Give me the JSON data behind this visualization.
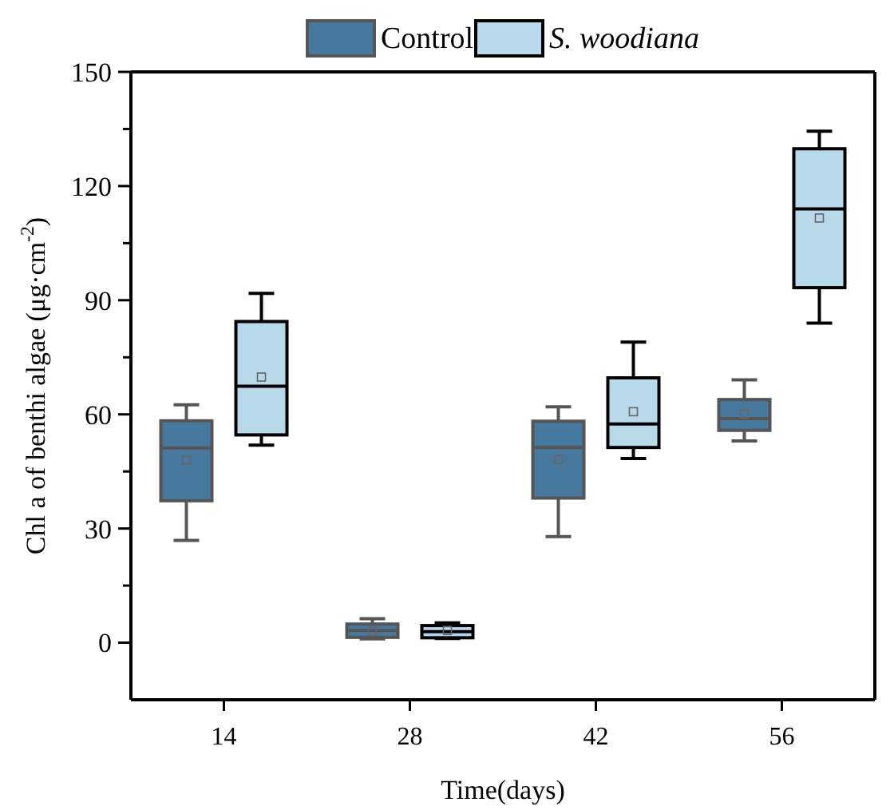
{
  "chart_data": {
    "type": "box",
    "xlabel": "Time(days)",
    "ylabel": "Chl a of benthi algae (μg·cm$^{-2}$)",
    "categories": [
      "14",
      "28",
      "42",
      "56"
    ],
    "ylim": [
      -15,
      150
    ],
    "yticks": [
      {
        "value": 0,
        "label": "0"
      },
      {
        "value": 15,
        "label": null
      },
      {
        "value": 30,
        "label": "30"
      },
      {
        "value": 45,
        "label": null
      },
      {
        "value": 60,
        "label": "60"
      },
      {
        "value": 75,
        "label": null
      },
      {
        "value": 90,
        "label": "90"
      },
      {
        "value": 105,
        "label": null
      },
      {
        "value": 120,
        "label": "120"
      },
      {
        "value": 135,
        "label": null
      },
      {
        "value": 150,
        "label": "150"
      }
    ],
    "legend": "top",
    "grid": false,
    "series": [
      {
        "name": "Control",
        "color": "#47799e",
        "boxes": [
          {
            "low": 26.9,
            "q1": 37.3,
            "median": 51.2,
            "q3": 58.3,
            "high": 62.5,
            "mean": 48
          },
          {
            "low": 1,
            "q1": 1.4,
            "median": 3.2,
            "q3": 4.9,
            "high": 6.3,
            "mean": 3
          },
          {
            "low": 27.9,
            "q1": 38,
            "median": 51.3,
            "q3": 58.2,
            "high": 62,
            "mean": 48.1
          },
          {
            "low": 53,
            "q1": 55.8,
            "median": 58.9,
            "q3": 63.9,
            "high": 69.1,
            "mean": 60.1
          }
        ]
      },
      {
        "name": "S. woodiana",
        "color": "#b8d9ea",
        "boxes": [
          {
            "low": 51.9,
            "q1": 54.6,
            "median": 67.4,
            "q3": 84.4,
            "high": 91.8,
            "mean": 69.8
          },
          {
            "low": 1.1,
            "q1": 1.3,
            "median": 2.9,
            "q3": 4.5,
            "high": 5.2,
            "mean": 3.2
          },
          {
            "low": 48.4,
            "q1": 51.3,
            "median": 57.5,
            "q3": 69.6,
            "high": 79,
            "mean": 60.7
          },
          {
            "low": 84,
            "q1": 93.3,
            "median": 114,
            "q3": 129.8,
            "high": 134.4,
            "mean": 111.6
          }
        ]
      }
    ]
  }
}
